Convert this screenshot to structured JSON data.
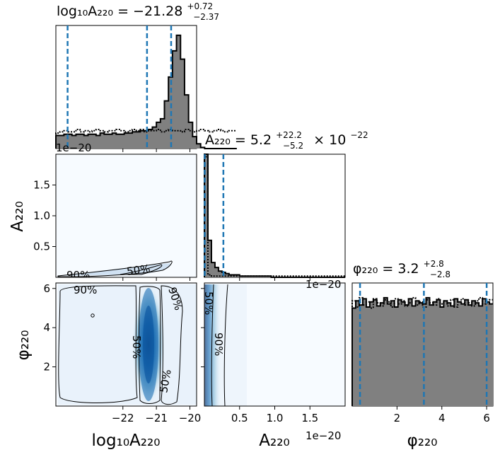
{
  "chart_data": [
    {
      "type": "histogram",
      "panel": "log10A220-marginal",
      "title_base": "log₁₀A₂₂₀ = −21.28",
      "title_sup": "+0.72",
      "title_sub": "−2.37",
      "xlim": [
        -24,
        -19.8
      ],
      "quantile_lines": [
        -23.65,
        -21.28,
        -20.56
      ],
      "posterior_bins": {
        "start": -24.0,
        "width": 0.12,
        "values": [
          11,
          11,
          12,
          12,
          11,
          12,
          12,
          11,
          12,
          12,
          11,
          13,
          12,
          12,
          13,
          12,
          12,
          13,
          13,
          14,
          14,
          15,
          15,
          16,
          18,
          22,
          25,
          40,
          60,
          82,
          95,
          75,
          45,
          22,
          10,
          4,
          1,
          0,
          0,
          0,
          0,
          0,
          0,
          0,
          0
        ]
      },
      "prior_bins": {
        "start": -24.0,
        "width": 0.12,
        "values": [
          13,
          14,
          15,
          14,
          14,
          16,
          14,
          15,
          14,
          15,
          16,
          15,
          14,
          15,
          15,
          16,
          15,
          14,
          15,
          16,
          15,
          16,
          14,
          15,
          15,
          16,
          14,
          15,
          16,
          15,
          15,
          14,
          16,
          15,
          14,
          15,
          16,
          15,
          14,
          15,
          16,
          15,
          14,
          15,
          15
        ]
      },
      "offset_text": "1e−20"
    },
    {
      "type": "heatmap",
      "panel": "A220-vs-log10A220",
      "ylabel": "A₂₂₀",
      "ylim": [
        0,
        2.0
      ],
      "yticks": [
        "0.5",
        "1.0",
        "1.5"
      ],
      "ytick_values": [
        0.5,
        1.0,
        1.5
      ],
      "contour_labels": [
        "90%",
        "50%"
      ]
    },
    {
      "type": "histogram",
      "panel": "A220-marginal",
      "title_base": "A₂₂₀ = 5.2",
      "title_sup": "+22.2",
      "title_sub": "−5.2",
      "title_suffix": "× 10",
      "title_exp": "−22",
      "xlim": [
        0,
        2.0
      ],
      "quantile_lines": [
        0.005,
        0.27
      ],
      "posterior_bins": {
        "start": 0.0,
        "width": 0.05,
        "values": [
          100,
          30,
          12,
          8,
          5,
          4,
          3,
          2,
          2,
          2,
          1,
          1,
          1,
          1,
          1,
          1,
          1,
          1,
          1,
          0,
          0,
          0,
          0,
          0,
          0,
          0,
          0,
          0,
          0,
          0,
          0,
          0,
          0,
          0,
          0,
          0,
          0,
          0,
          0,
          0
        ]
      },
      "prior_bins": {
        "start": 0.0,
        "width": 0.05,
        "values": [
          98,
          2,
          1,
          1,
          1,
          1,
          1,
          1,
          1,
          1,
          1,
          1,
          1,
          1,
          1,
          1,
          1,
          1,
          1,
          1,
          1,
          1,
          1,
          1,
          1,
          1,
          1,
          1,
          1,
          1,
          1,
          1,
          1,
          1,
          1,
          1,
          1,
          1,
          1,
          1
        ]
      },
      "offset_text": "1e−20"
    },
    {
      "type": "heatmap",
      "panel": "phi220-vs-log10A220",
      "xlabel": "log₁₀A₂₂₀",
      "ylabel": "φ₂₂₀",
      "xlim": [
        -24,
        -19.8
      ],
      "ylim": [
        0,
        6.28
      ],
      "xticks": [
        "−22",
        "−21",
        "−20"
      ],
      "xtick_values": [
        -22,
        -21,
        -20
      ],
      "yticks": [
        "2",
        "4",
        "6"
      ],
      "ytick_values": [
        2,
        4,
        6
      ],
      "contour_labels": [
        "90%",
        "90%",
        "50%",
        "50%"
      ]
    },
    {
      "type": "heatmap",
      "panel": "phi220-vs-A220",
      "xlabel": "A₂₂₀",
      "xlim": [
        0,
        2.0
      ],
      "xticks": [
        "0.5",
        "1.0",
        "1.5"
      ],
      "xtick_values": [
        0.5,
        1.0,
        1.5
      ],
      "contour_labels": [
        "50%",
        "90%"
      ],
      "offset_text": "1e−20"
    },
    {
      "type": "histogram",
      "panel": "phi220-marginal",
      "title_base": "φ₂₂₀ = 3.2",
      "title_sup": "+2.8",
      "title_sub": "−2.8",
      "xlabel": "φ₂₂₀",
      "xlim": [
        0,
        6.28
      ],
      "xticks": [
        "2",
        "4",
        "6"
      ],
      "xtick_values": [
        2,
        4,
        6
      ],
      "quantile_lines": [
        0.35,
        3.2,
        6.0
      ],
      "posterior_bins": {
        "start": 0.0,
        "width": 0.157,
        "values": [
          9.5,
          10.2,
          9.8,
          10.4,
          9.6,
          10.1,
          10.3,
          9.7,
          10.0,
          10.5,
          9.9,
          10.2,
          9.6,
          10.3,
          10.1,
          9.8,
          10.4,
          9.7,
          10.2,
          10.0,
          9.9,
          10.5,
          9.8,
          10.1,
          10.3,
          9.6,
          10.2,
          10.0,
          9.7,
          10.4,
          10.1,
          9.9,
          10.3,
          9.8,
          10.2,
          10.0,
          9.7,
          10.4,
          10.1,
          9.9
        ]
      },
      "prior_bins": {
        "start": 0.0,
        "width": 0.157,
        "values": [
          10.2,
          9.6,
          10.5,
          9.8,
          10.1,
          9.5,
          10.4,
          10.0,
          9.7,
          10.3,
          10.1,
          9.6,
          10.4,
          9.9,
          10.2,
          9.7,
          10.0,
          10.5,
          9.8,
          10.1,
          9.6,
          10.3,
          10.0,
          9.8,
          10.4,
          9.9,
          10.2,
          9.7,
          10.3,
          9.6,
          10.1,
          10.4,
          9.8,
          10.0,
          9.7,
          10.2,
          10.5,
          9.9,
          10.0,
          10.3
        ]
      }
    }
  ]
}
